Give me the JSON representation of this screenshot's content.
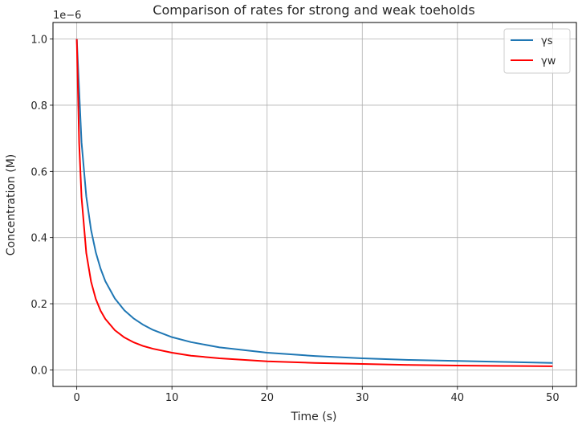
{
  "chart_data": {
    "type": "line",
    "title": "Comparison of rates for strong and weak toeholds",
    "xlabel": "Time (s)",
    "ylabel": "Concentration (M)",
    "y_offset_label": "1e−6",
    "xlim": [
      -2.5,
      52.5
    ],
    "ylim": [
      -0.05,
      1.05
    ],
    "x_ticks": [
      0,
      10,
      20,
      30,
      40,
      50
    ],
    "x_tick_labels": [
      "0",
      "10",
      "20",
      "30",
      "40",
      "50"
    ],
    "y_ticks": [
      0.0,
      0.2,
      0.4,
      0.6,
      0.8,
      1.0
    ],
    "y_tick_labels": [
      "0.0",
      "0.2",
      "0.4",
      "0.6",
      "0.8",
      "1.0"
    ],
    "grid": true,
    "legend_position": "top-right",
    "series": [
      {
        "name": "γs",
        "color": "#1f77b4",
        "x": [
          0,
          0.5,
          1,
          1.5,
          2,
          2.5,
          3,
          4,
          5,
          6,
          7,
          8,
          10,
          12,
          15,
          20,
          25,
          30,
          35,
          40,
          45,
          50
        ],
        "y": [
          1.0,
          0.688,
          0.524,
          0.423,
          0.355,
          0.306,
          0.268,
          0.216,
          0.18,
          0.155,
          0.136,
          0.121,
          0.099,
          0.084,
          0.068,
          0.052,
          0.042,
          0.035,
          0.03,
          0.027,
          0.024,
          0.021
        ]
      },
      {
        "name": "γw",
        "color": "#ff0000",
        "x": [
          0,
          0.25,
          0.5,
          1,
          1.5,
          2,
          2.5,
          3,
          4,
          5,
          6,
          7,
          8,
          10,
          12,
          15,
          20,
          25,
          30,
          35,
          40,
          45,
          50
        ],
        "y": [
          1.0,
          0.686,
          0.522,
          0.353,
          0.267,
          0.214,
          0.179,
          0.154,
          0.12,
          0.098,
          0.083,
          0.072,
          0.064,
          0.052,
          0.043,
          0.035,
          0.026,
          0.021,
          0.018,
          0.015,
          0.013,
          0.012,
          0.011
        ]
      }
    ]
  }
}
